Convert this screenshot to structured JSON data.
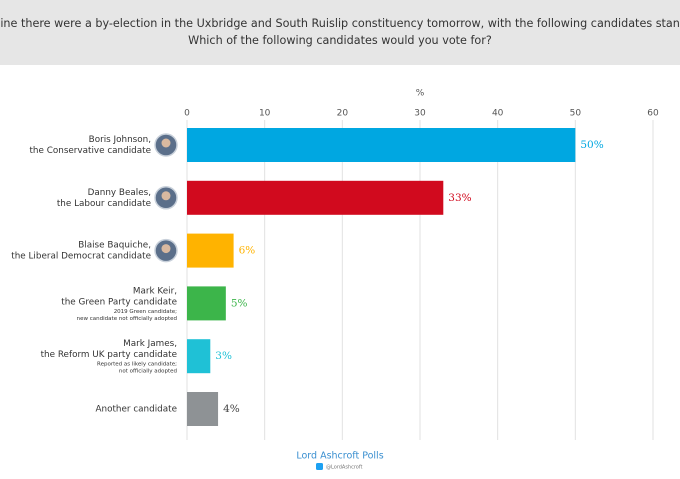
{
  "chart_data": {
    "type": "bar",
    "orientation": "horizontal",
    "title_lines": [
      "Imagine there were a by-election in the Uxbridge and South Ruislip constituency tomorrow, with the following candidates standing.",
      "Which of the following candidates would you vote for?"
    ],
    "axis_label": "%",
    "categories": [
      [
        "Boris Johnson,",
        "the Conservative candidate"
      ],
      [
        "Danny Beales,",
        "the Labour candidate"
      ],
      [
        "Blaise Baquiche,",
        "the Liberal Democrat candidate"
      ],
      [
        "Mark Keir,",
        "the Green Party candidate",
        "2019 Green candidate;",
        "new candidate not officially adopted"
      ],
      [
        "Mark James,",
        "the Reform UK party candidate",
        "Reported as likely candidate;",
        "not officially adopted"
      ],
      [
        "Another candidate"
      ]
    ],
    "values": [
      50,
      33,
      6,
      5,
      3,
      4
    ],
    "value_labels": [
      "50%",
      "33%",
      "6%",
      "5%",
      "3%",
      "4%"
    ],
    "colors": [
      "#00a7e1",
      "#d10a1e",
      "#ffb300",
      "#3cb54a",
      "#1fc1d6",
      "#8e9295"
    ],
    "label_colors": [
      "#00a7e1",
      "#d10a1e",
      "#ffb300",
      "#3cb54a",
      "#1fc1d6",
      "#444444"
    ],
    "xlim": [
      0,
      60
    ],
    "xticks": [
      0,
      10,
      20,
      30,
      40,
      50,
      60
    ],
    "grid": true,
    "source": "Lord Ashcroft Polls",
    "handle": "@LordAshcroft"
  }
}
